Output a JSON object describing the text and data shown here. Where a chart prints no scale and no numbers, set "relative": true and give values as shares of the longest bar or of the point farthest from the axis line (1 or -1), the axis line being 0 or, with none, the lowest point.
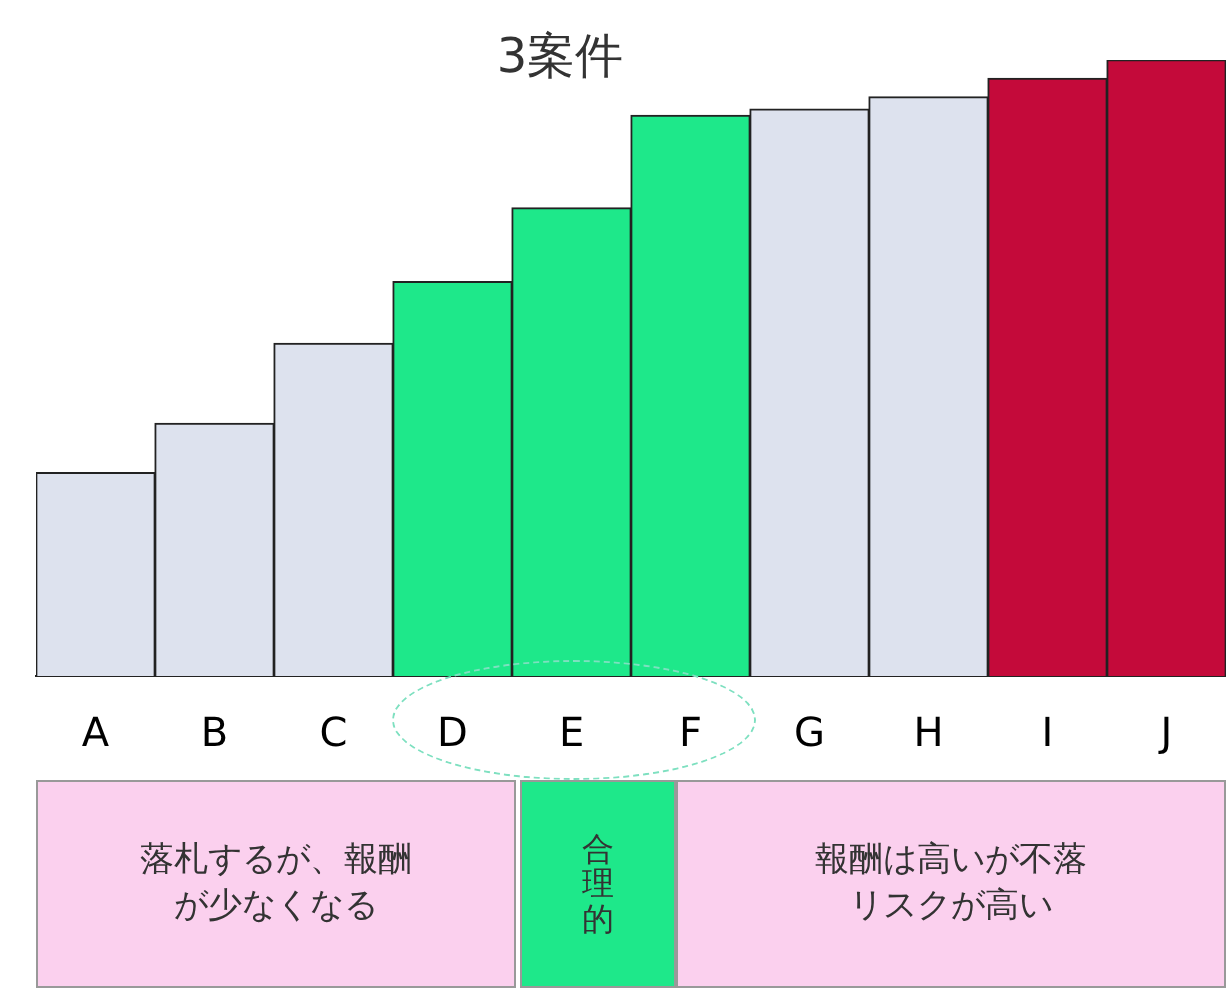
{
  "chart_data": {
    "type": "bar",
    "title": "3案件",
    "relative": true,
    "categories": [
      "A",
      "B",
      "C",
      "D",
      "E",
      "F",
      "G",
      "H",
      "I",
      "J"
    ],
    "values": [
      0.33,
      0.41,
      0.54,
      0.64,
      0.76,
      0.91,
      0.92,
      0.94,
      0.97,
      1
    ],
    "colors": [
      "#dde2ee",
      "#dde2ee",
      "#dde2ee",
      "#1ee88a",
      "#1ee88a",
      "#1ee88a",
      "#dde2ee",
      "#dde2ee",
      "#c40a3a",
      "#c40a3a"
    ],
    "annotations": [
      "落札するが、報酬が少なくなる",
      "合理的",
      "報酬は高いが不落リスクが高い"
    ]
  }
}
